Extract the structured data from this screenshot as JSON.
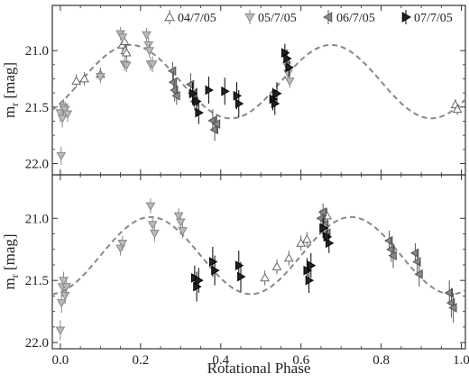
{
  "chart_data": [
    {
      "type": "scatter",
      "panel": "top",
      "xlabel": "",
      "ylabel": "m_r [mag]",
      "ylabel_main": "m",
      "ylabel_sub": "r",
      "ylabel_unit": "[mag]",
      "xlim": [
        -0.02,
        1.01
      ],
      "ylim": [
        22.1,
        20.6
      ],
      "y_inverted": true,
      "x_ticks": [
        0.0,
        0.2,
        0.4,
        0.6,
        0.8,
        1.0
      ],
      "y_ticks": [
        21.0,
        21.5,
        22.0
      ],
      "y_tick_labels": [
        "21.0",
        "21.5",
        "22.0"
      ],
      "legend": {
        "placement": "top",
        "entries": [
          {
            "label": "04/7/05",
            "marker": "triangle-up",
            "fill": "#ffffff",
            "stroke": "#666666"
          },
          {
            "label": "05/7/05",
            "marker": "triangle-down",
            "fill": "#bbbbbb",
            "stroke": "#888888"
          },
          {
            "label": "06/7/05",
            "marker": "triangle-left",
            "fill": "#888888",
            "stroke": "#555555"
          },
          {
            "label": "07/7/05",
            "marker": "triangle-right",
            "fill": "#222222",
            "stroke": "#000000"
          }
        ]
      },
      "model_curve": {
        "style": "dashed",
        "color": "#888888",
        "mean": 21.275,
        "amplitude": 0.325,
        "peak_phase": 0.175
      },
      "series": [
        {
          "name": "04/7/05",
          "marker": "triangle-up",
          "points": [
            {
              "x": 0.04,
              "y": 21.27,
              "err": 0.06
            },
            {
              "x": 0.06,
              "y": 21.25,
              "err": 0.06
            },
            {
              "x": 0.1,
              "y": 21.21,
              "err": 0.06
            },
            {
              "x": 0.155,
              "y": 20.95,
              "err": 0.07
            },
            {
              "x": 0.16,
              "y": 20.92,
              "err": 0.06
            },
            {
              "x": 0.162,
              "y": 21.0,
              "err": 0.06
            },
            {
              "x": 0.165,
              "y": 21.02,
              "err": 0.06
            },
            {
              "x": 0.985,
              "y": 21.48,
              "err": 0.05
            },
            {
              "x": 0.99,
              "y": 21.52,
              "err": 0.05
            }
          ]
        },
        {
          "name": "05/7/05",
          "marker": "triangle-down",
          "points": [
            {
              "x": 0.0,
              "y": 21.55,
              "err": 0.08
            },
            {
              "x": 0.002,
              "y": 21.93,
              "err": 0.08
            },
            {
              "x": 0.005,
              "y": 21.6,
              "err": 0.08
            },
            {
              "x": 0.008,
              "y": 21.5,
              "err": 0.07
            },
            {
              "x": 0.012,
              "y": 21.52,
              "err": 0.07
            },
            {
              "x": 0.018,
              "y": 21.56,
              "err": 0.07
            },
            {
              "x": 0.1,
              "y": 21.23,
              "err": 0.06
            },
            {
              "x": 0.15,
              "y": 20.85,
              "err": 0.06
            },
            {
              "x": 0.155,
              "y": 20.88,
              "err": 0.06
            },
            {
              "x": 0.16,
              "y": 21.12,
              "err": 0.06
            },
            {
              "x": 0.165,
              "y": 21.13,
              "err": 0.06
            },
            {
              "x": 0.215,
              "y": 20.86,
              "err": 0.06
            },
            {
              "x": 0.22,
              "y": 20.95,
              "err": 0.07
            },
            {
              "x": 0.222,
              "y": 21.0,
              "err": 0.06
            },
            {
              "x": 0.225,
              "y": 21.12,
              "err": 0.06
            },
            {
              "x": 0.23,
              "y": 21.12,
              "err": 0.07
            },
            {
              "x": 0.565,
              "y": 21.13,
              "err": 0.06
            },
            {
              "x": 0.568,
              "y": 21.2,
              "err": 0.06
            },
            {
              "x": 0.572,
              "y": 21.27,
              "err": 0.06
            }
          ]
        },
        {
          "name": "06/7/05",
          "marker": "triangle-left",
          "points": [
            {
              "x": 0.28,
              "y": 21.18,
              "err": 0.08
            },
            {
              "x": 0.282,
              "y": 21.28,
              "err": 0.1
            },
            {
              "x": 0.285,
              "y": 21.35,
              "err": 0.1
            },
            {
              "x": 0.29,
              "y": 21.4,
              "err": 0.08
            },
            {
              "x": 0.325,
              "y": 21.3,
              "err": 0.1
            },
            {
              "x": 0.33,
              "y": 21.38,
              "err": 0.1
            },
            {
              "x": 0.335,
              "y": 21.45,
              "err": 0.08
            },
            {
              "x": 0.38,
              "y": 21.62,
              "err": 0.1
            },
            {
              "x": 0.385,
              "y": 21.7,
              "err": 0.1
            },
            {
              "x": 0.39,
              "y": 21.65,
              "err": 0.08
            }
          ]
        },
        {
          "name": "07/7/05",
          "marker": "triangle-right",
          "points": [
            {
              "x": 0.33,
              "y": 21.38,
              "err": 0.1
            },
            {
              "x": 0.34,
              "y": 21.45,
              "err": 0.12
            },
            {
              "x": 0.345,
              "y": 21.55,
              "err": 0.1
            },
            {
              "x": 0.37,
              "y": 21.35,
              "err": 0.12
            },
            {
              "x": 0.41,
              "y": 21.36,
              "err": 0.12
            },
            {
              "x": 0.44,
              "y": 21.4,
              "err": 0.12
            },
            {
              "x": 0.445,
              "y": 21.47,
              "err": 0.12
            },
            {
              "x": 0.53,
              "y": 21.43,
              "err": 0.1
            },
            {
              "x": 0.535,
              "y": 21.47,
              "err": 0.1
            },
            {
              "x": 0.54,
              "y": 21.38,
              "err": 0.1
            },
            {
              "x": 0.56,
              "y": 21.02,
              "err": 0.08
            },
            {
              "x": 0.565,
              "y": 21.07,
              "err": 0.08
            },
            {
              "x": 0.57,
              "y": 21.15,
              "err": 0.08
            }
          ]
        }
      ]
    },
    {
      "type": "scatter",
      "panel": "bottom",
      "xlabel": "Rotational Phase",
      "ylabel": "m_r [mag]",
      "ylabel_main": "m",
      "ylabel_sub": "r",
      "ylabel_unit": "[mag]",
      "xlim": [
        -0.02,
        1.01
      ],
      "ylim": [
        22.05,
        20.65
      ],
      "y_inverted": true,
      "x_ticks": [
        0.0,
        0.2,
        0.4,
        0.6,
        0.8,
        1.0
      ],
      "x_tick_labels": [
        "0.0",
        "0.2",
        "0.4",
        "0.6",
        "0.8",
        "1.0"
      ],
      "y_ticks": [
        21.0,
        21.5,
        22.0
      ],
      "y_tick_labels": [
        "21.0",
        "21.5",
        "22.0"
      ],
      "model_curve": {
        "style": "dashed",
        "color": "#888888",
        "mean": 21.3,
        "amplitude": 0.31,
        "peak_phase": 0.225
      },
      "series": [
        {
          "name": "04/7/05",
          "marker": "triangle-up",
          "points": [
            {
              "x": 0.51,
              "y": 21.48,
              "err": 0.06
            },
            {
              "x": 0.54,
              "y": 21.39,
              "err": 0.06
            },
            {
              "x": 0.57,
              "y": 21.32,
              "err": 0.06
            },
            {
              "x": 0.6,
              "y": 21.2,
              "err": 0.06
            },
            {
              "x": 0.615,
              "y": 21.17,
              "err": 0.06
            },
            {
              "x": 0.665,
              "y": 20.98,
              "err": 0.06
            }
          ]
        },
        {
          "name": "05/7/05",
          "marker": "triangle-down",
          "points": [
            {
              "x": 0.0,
              "y": 21.9,
              "err": 0.08
            },
            {
              "x": 0.003,
              "y": 21.68,
              "err": 0.08
            },
            {
              "x": 0.005,
              "y": 21.55,
              "err": 0.08
            },
            {
              "x": 0.008,
              "y": 21.5,
              "err": 0.07
            },
            {
              "x": 0.012,
              "y": 21.62,
              "err": 0.07
            },
            {
              "x": 0.015,
              "y": 21.55,
              "err": 0.07
            },
            {
              "x": 0.15,
              "y": 21.24,
              "err": 0.06
            },
            {
              "x": 0.155,
              "y": 21.2,
              "err": 0.06
            },
            {
              "x": 0.225,
              "y": 20.9,
              "err": 0.06
            },
            {
              "x": 0.23,
              "y": 21.05,
              "err": 0.06
            },
            {
              "x": 0.235,
              "y": 21.12,
              "err": 0.07
            },
            {
              "x": 0.295,
              "y": 20.98,
              "err": 0.06
            },
            {
              "x": 0.3,
              "y": 21.03,
              "err": 0.06
            },
            {
              "x": 0.305,
              "y": 21.1,
              "err": 0.06
            }
          ]
        },
        {
          "name": "06/7/05",
          "marker": "triangle-left",
          "points": [
            {
              "x": 0.65,
              "y": 21.0,
              "err": 0.07
            },
            {
              "x": 0.655,
              "y": 20.95,
              "err": 0.07
            },
            {
              "x": 0.66,
              "y": 21.05,
              "err": 0.07
            },
            {
              "x": 0.665,
              "y": 21.12,
              "err": 0.07
            },
            {
              "x": 0.82,
              "y": 21.18,
              "err": 0.08
            },
            {
              "x": 0.825,
              "y": 21.25,
              "err": 0.1
            },
            {
              "x": 0.83,
              "y": 21.3,
              "err": 0.1
            },
            {
              "x": 0.885,
              "y": 21.28,
              "err": 0.08
            },
            {
              "x": 0.89,
              "y": 21.35,
              "err": 0.1
            },
            {
              "x": 0.895,
              "y": 21.45,
              "err": 0.1
            },
            {
              "x": 0.97,
              "y": 21.6,
              "err": 0.1
            },
            {
              "x": 0.975,
              "y": 21.68,
              "err": 0.12
            },
            {
              "x": 0.98,
              "y": 21.72,
              "err": 0.12
            }
          ]
        },
        {
          "name": "07/7/05",
          "marker": "triangle-right",
          "points": [
            {
              "x": 0.335,
              "y": 21.48,
              "err": 0.1
            },
            {
              "x": 0.34,
              "y": 21.55,
              "err": 0.12
            },
            {
              "x": 0.345,
              "y": 21.5,
              "err": 0.1
            },
            {
              "x": 0.38,
              "y": 21.35,
              "err": 0.12
            },
            {
              "x": 0.385,
              "y": 21.42,
              "err": 0.12
            },
            {
              "x": 0.445,
              "y": 21.38,
              "err": 0.12
            },
            {
              "x": 0.45,
              "y": 21.47,
              "err": 0.12
            },
            {
              "x": 0.615,
              "y": 21.42,
              "err": 0.1
            },
            {
              "x": 0.62,
              "y": 21.5,
              "err": 0.1
            },
            {
              "x": 0.625,
              "y": 21.38,
              "err": 0.1
            },
            {
              "x": 0.655,
              "y": 21.08,
              "err": 0.08
            },
            {
              "x": 0.665,
              "y": 21.15,
              "err": 0.08
            },
            {
              "x": 0.67,
              "y": 21.2,
              "err": 0.08
            }
          ]
        }
      ]
    }
  ]
}
